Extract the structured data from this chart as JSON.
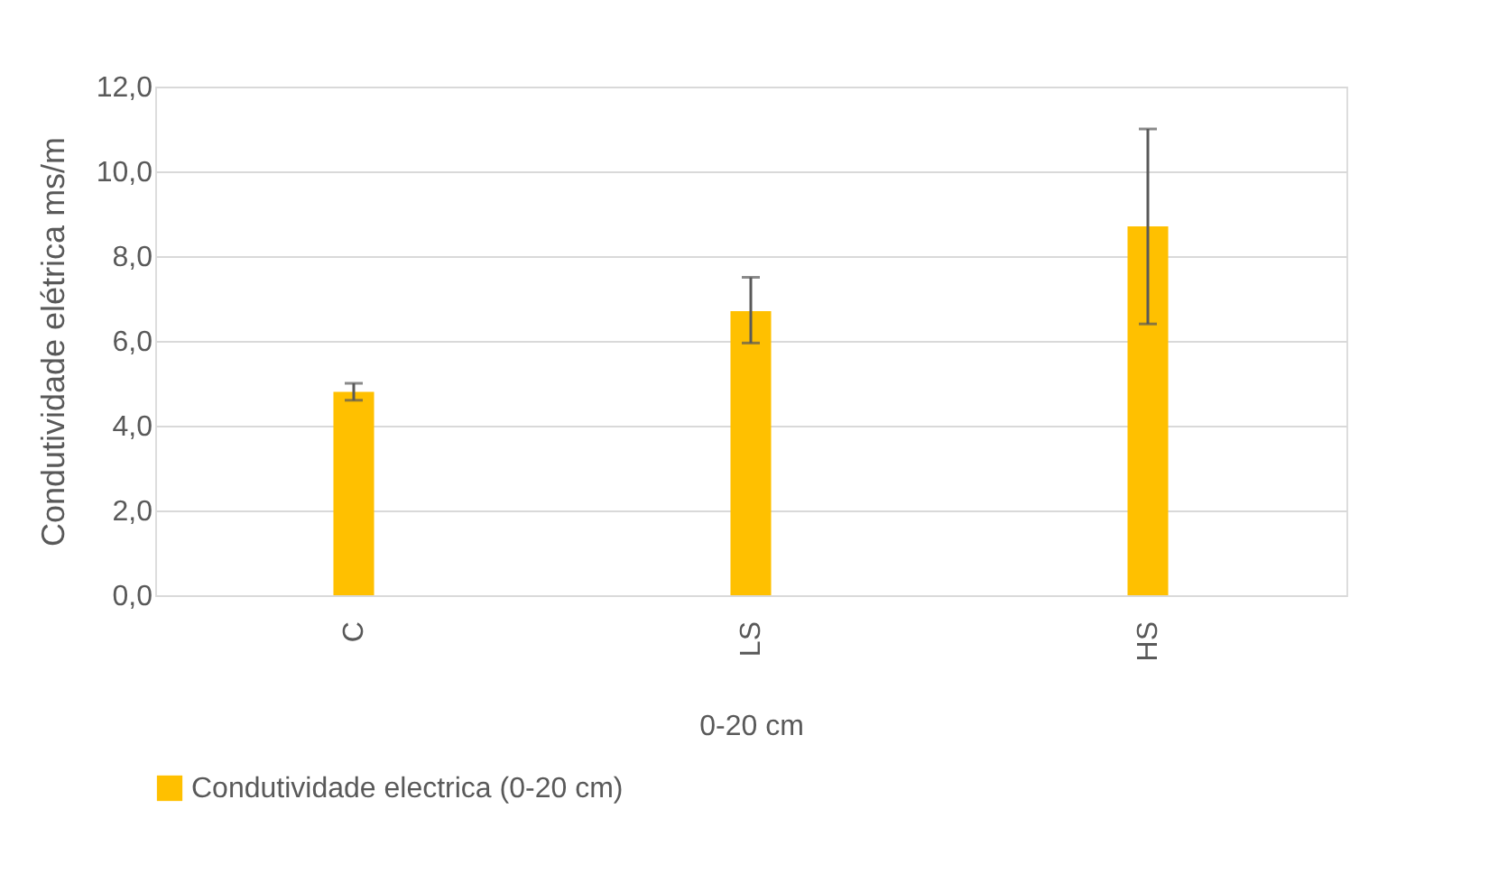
{
  "chart_data": {
    "type": "bar",
    "categories": [
      "C",
      "LS",
      "HS"
    ],
    "series": [
      {
        "name": "Condutividade electrica (0-20 cm)",
        "color": "#ffc000",
        "values": [
          4.8,
          6.7,
          8.7
        ],
        "errors": [
          [
            4.6,
            5.0
          ],
          [
            5.95,
            7.5
          ],
          [
            6.4,
            11.0
          ]
        ]
      }
    ],
    "ylabel": "Condutividade elétrica ms/m",
    "xlabel": "0-20 cm",
    "ylim": [
      0,
      12
    ],
    "yticks": [
      {
        "value": 0,
        "label": "0,0"
      },
      {
        "value": 2,
        "label": "2,0"
      },
      {
        "value": 4,
        "label": "4,0"
      },
      {
        "value": 6,
        "label": "6,0"
      },
      {
        "value": 8,
        "label": "8,0"
      },
      {
        "value": 10,
        "label": "10,0"
      },
      {
        "value": 12,
        "label": "12,0"
      }
    ],
    "grid": "y",
    "legend": "bottom"
  }
}
